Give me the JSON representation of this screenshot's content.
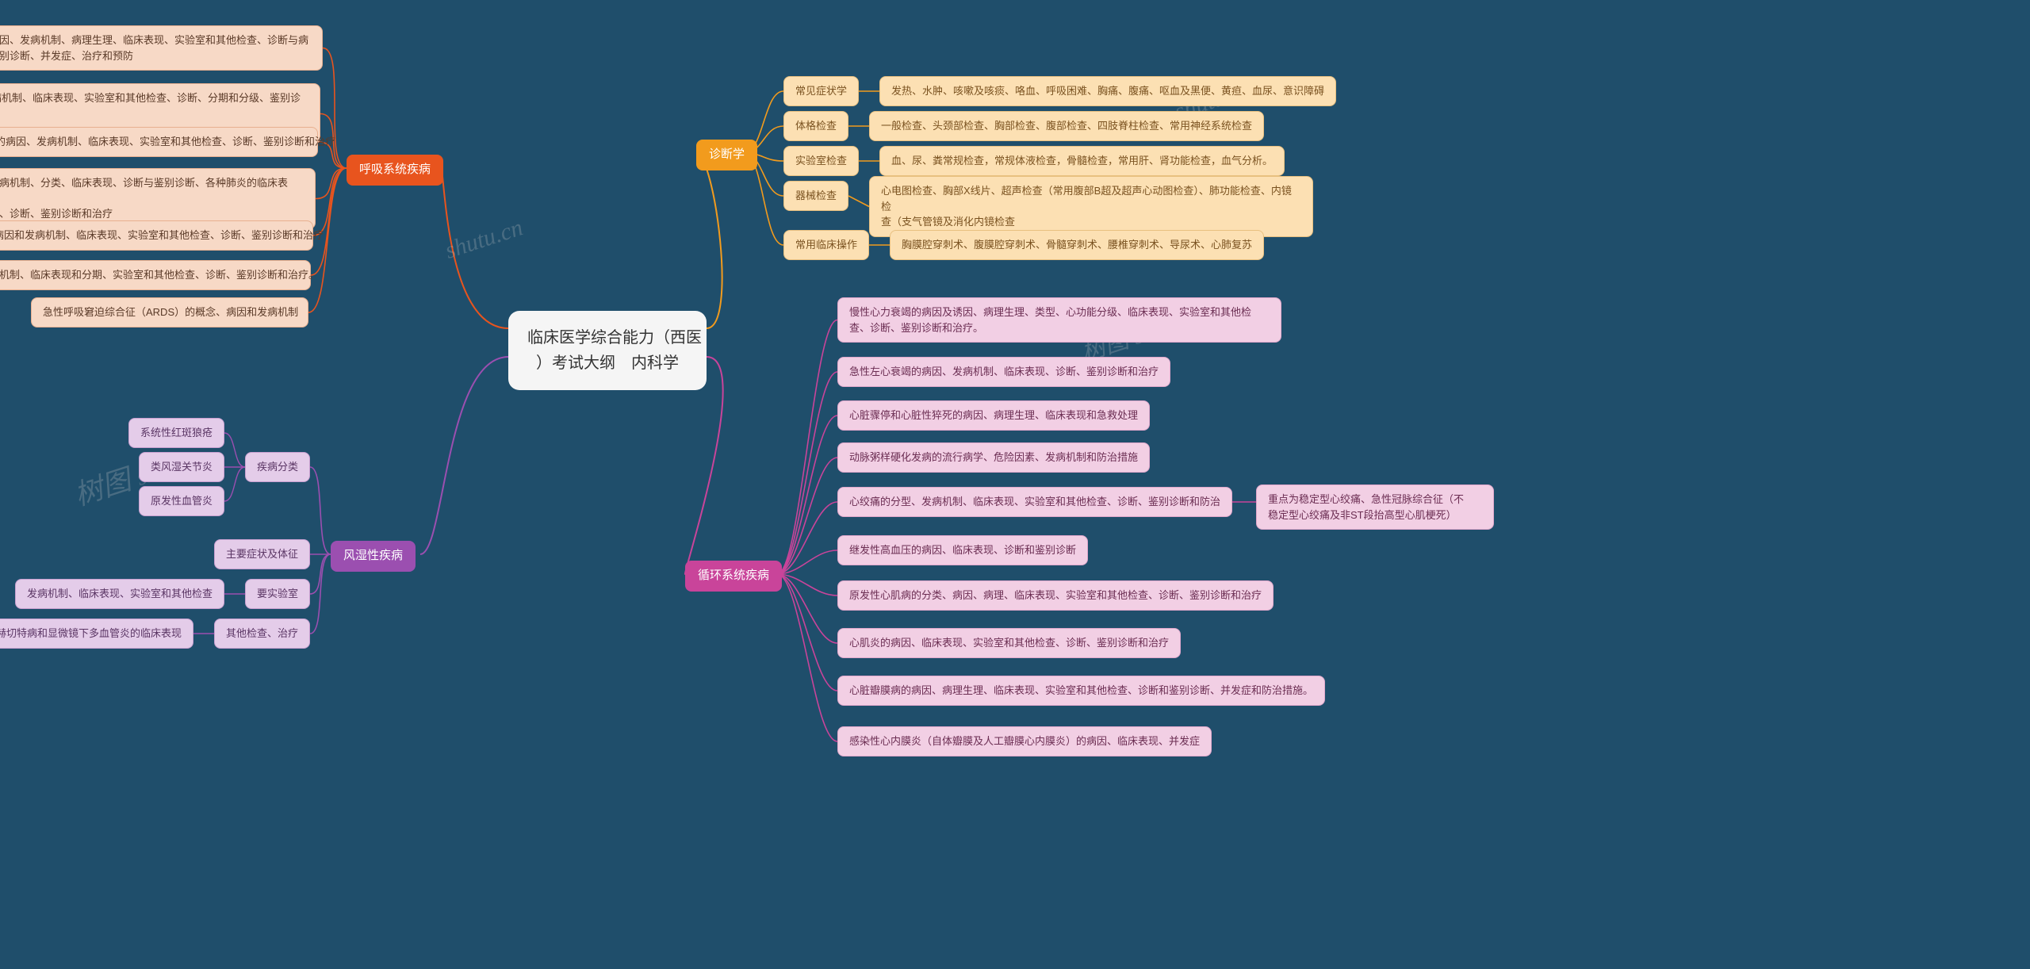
{
  "background": "#1f4e6b",
  "root": {
    "text": "临床医学综合能力（西医\n）考试大纲　内科学",
    "bg": "#f5f5f5",
    "fg": "#333333"
  },
  "watermark": "shutu.cn",
  "branches": {
    "resp": {
      "label": "呼吸系统疾病",
      "bg": "#e8541e",
      "fg": "#ffffff",
      "leaf_bg": "#f7d9c6",
      "leaf_fg": "#5a3a28",
      "leaf_border": "#e8b090",
      "items": [
        "性阻塞性肺疾病的病因、发病机制、病理生理、临床表现、实验室和其他检查、诊断与病\n情严重程度评估、鉴别诊断、并发症、治疗和预防",
        "支气管哮喘的病因、发病机制、临床表现、实验室和其他检查、诊断、分期和分级、鉴别诊断、\n并发症和治疗",
        "支气管扩张症的病因、发病机制、临床表现、实验室和其他检查、诊断、鉴别诊断和治疗",
        "肺炎的流行病学、病因和发病机制、分类、临床表现、诊断与鉴别诊断、各种肺炎的临床表现、\n并发症、实验室和其他检查、诊断、鉴别诊断和治疗",
        "肺脓肿的病因和发病机制、临床表现、实验室和其他检查、诊断、鉴别诊断和治疗",
        "原发性支气管肺癌的病因和发病机制、临床表现和分期、实验室和其他检查、诊断、鉴别诊断和治疗。",
        "急性呼吸窘迫综合征（ARDS）的概念、病因和发病机制"
      ]
    },
    "diag": {
      "label": "诊断学",
      "bg": "#f29b1d",
      "fg": "#ffffff",
      "sub_bg": "#fce0b3",
      "sub_fg": "#7a5220",
      "sub_border": "#e8c080",
      "items": [
        {
          "k": "常见症状学",
          "v": "发热、水肿、咳嗽及咳痰、咯血、呼吸困难、胸痛、腹痛、呕血及黑便、黄疸、血尿、意识障碍"
        },
        {
          "k": "体格检查",
          "v": "一般检查、头颈部检查、胸部检查、腹部检查、四肢脊柱检查、常用神经系统检查"
        },
        {
          "k": "实验室检查",
          "v": "血、尿、粪常规检查，常规体液检查，骨髓检查，常用肝、肾功能检查，血气分析。"
        },
        {
          "k": "器械检查",
          "v": "心电图检查、胸部X线片、超声检查（常用腹部B超及超声心动图检查）、肺功能检查、内镜检\n查（支气管镜及消化内镜检查"
        },
        {
          "k": "常用临床操作",
          "v": "胸膜腔穿刺术、腹膜腔穿刺术、骨髓穿刺术、腰椎穿刺术、导尿术、心肺复苏"
        }
      ]
    },
    "rheu": {
      "label": "风湿性疾病",
      "bg": "#9b4fb0",
      "fg": "#ffffff",
      "sub_bg": "#e4cce9",
      "sub_fg": "#5a3564",
      "sub_border": "#c8a0d0",
      "items": [
        {
          "k": "疾病分类",
          "sub": [
            "系统性红斑狼疮",
            "类风湿关节炎",
            "原发性血管炎"
          ]
        },
        {
          "k": "主要症状及体征",
          "sub": []
        },
        {
          "k": "要实验室",
          "sub": [
            "发病机制、临床表现、实验室和其他检查"
          ]
        },
        {
          "k": "其他检查、治疗",
          "sub": [
            "贝赫切特病和显微镜下多血管炎的临床表现"
          ]
        }
      ]
    },
    "circ": {
      "label": "循环系统疾病",
      "bg": "#c9449a",
      "fg": "#ffffff",
      "leaf_bg": "#f2cfe4",
      "leaf_fg": "#6b2d52",
      "leaf_border": "#e0a8cc",
      "items": [
        "慢性心力衰竭的病因及诱因、病理生理、类型、心功能分级、临床表现、实验室和其他检\n查、诊断、鉴别诊断和治疗。",
        "急性左心衰竭的病因、发病机制、临床表现、诊断、鉴别诊断和治疗",
        "心脏骤停和心脏性猝死的病因、病理生理、临床表现和急救处理",
        "动脉粥样硬化发病的流行病学、危险因素、发病机制和防治措施",
        "心绞痛的分型、发病机制、临床表现、实验室和其他检查、诊断、鉴别诊断和防治",
        "继发性高血压的病因、临床表现、诊断和鉴别诊断",
        "原发性心肌病的分类、病因、病理、临床表现、实验室和其他检查、诊断、鉴别诊断和治疗",
        "心肌炎的病因、临床表现、实验室和其他检查、诊断、鉴别诊断和治疗",
        "心脏瓣膜病的病因、病理生理、临床表现、实验室和其他检查、诊断和鉴别诊断、并发症和防治措施。",
        "感染性心内膜炎（自体瓣膜及人工瓣膜心内膜炎）的病因、临床表现、并发症"
      ],
      "extra": "重点为稳定型心绞痛、急性冠脉综合征（不\n稳定型心绞痛及非ST段抬高型心肌梗死）"
    }
  }
}
